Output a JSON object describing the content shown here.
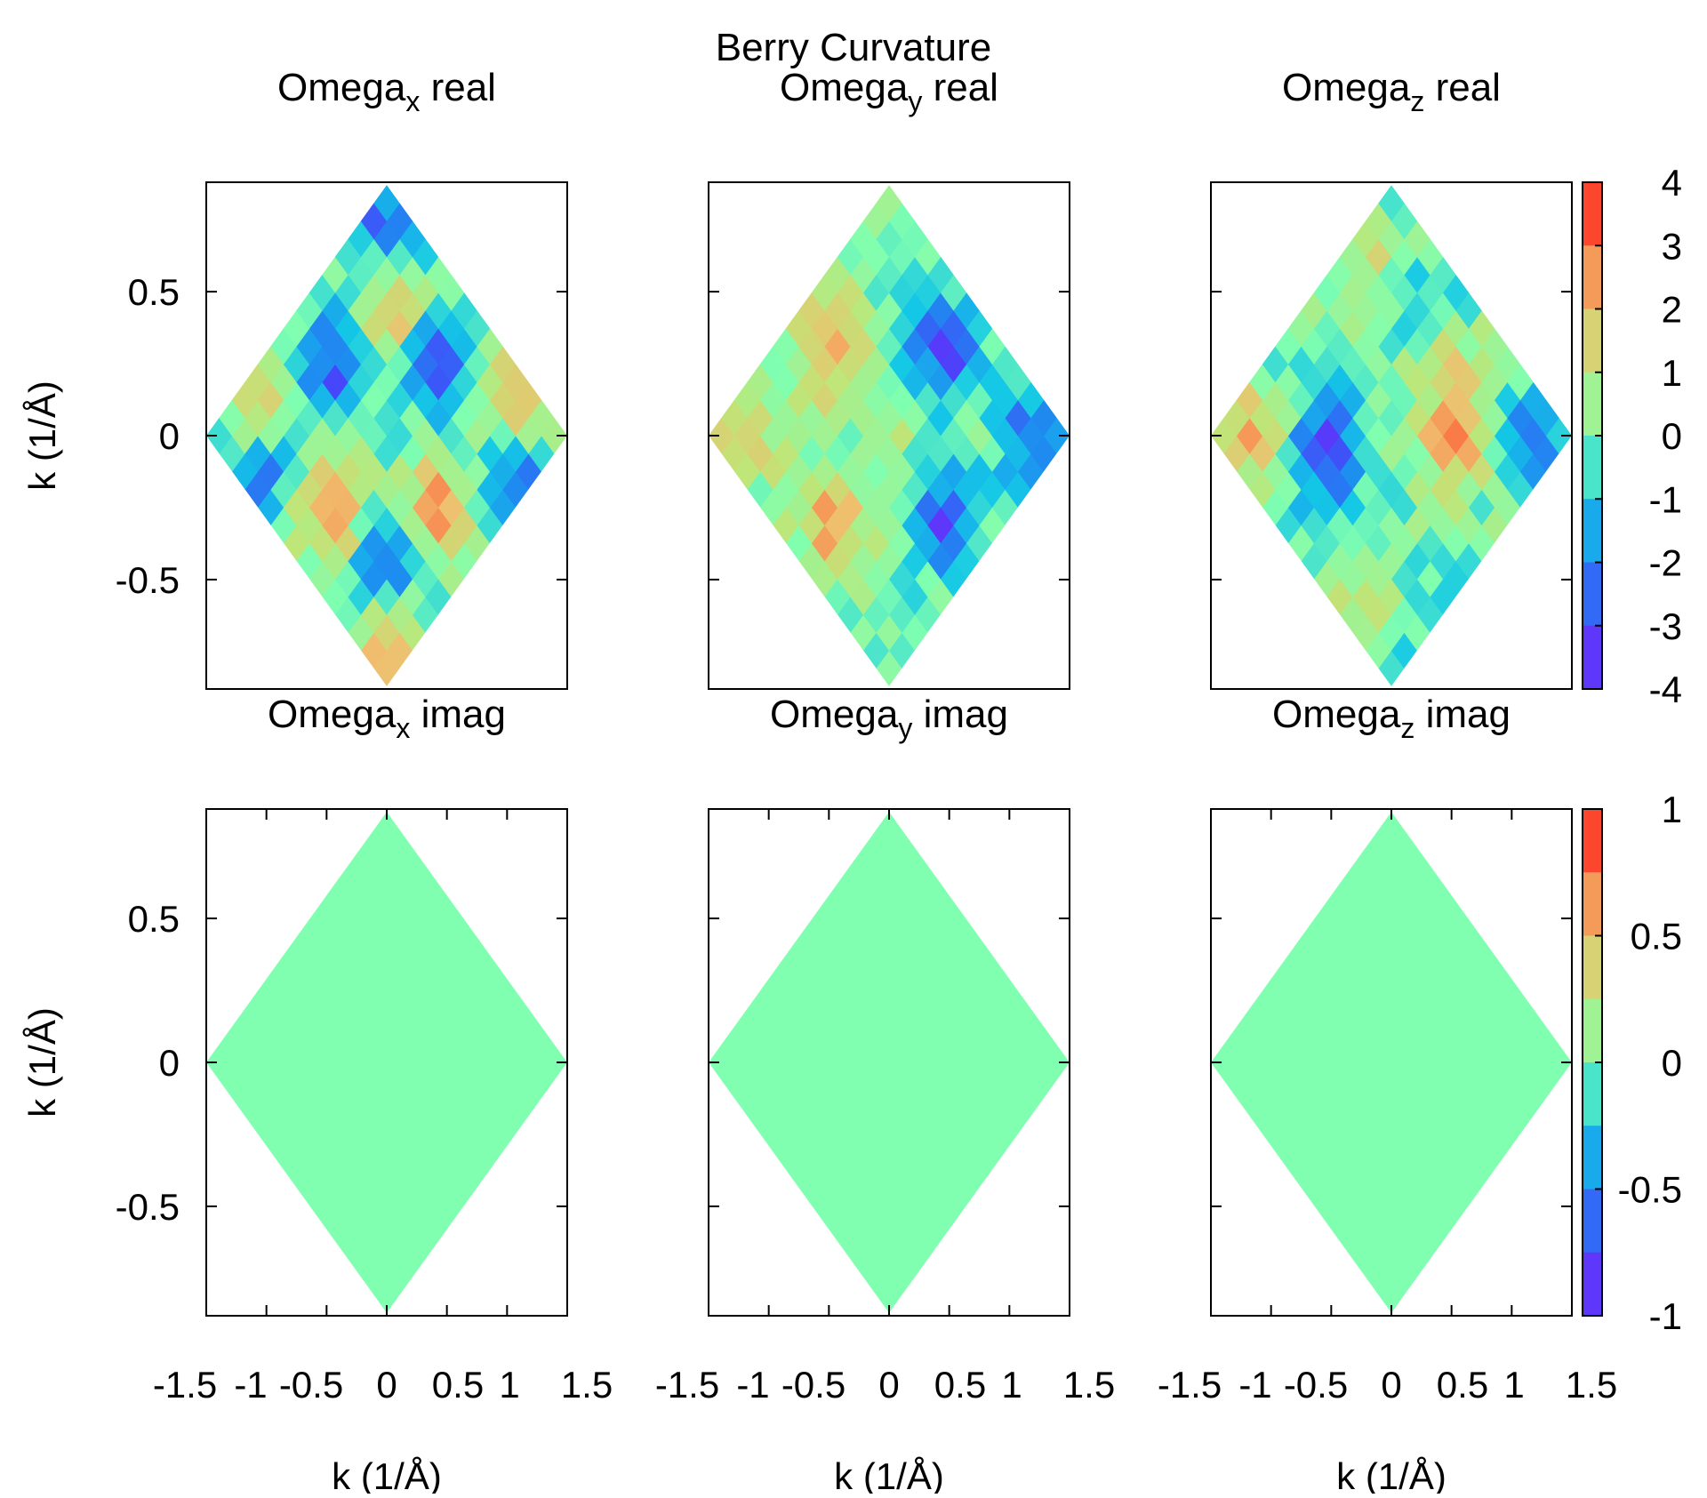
{
  "figure_title": "Berry Curvature",
  "colors": {
    "zero_fill": "#80ffb0",
    "frame": "#000000",
    "background": "#ffffff"
  },
  "chart_data": [
    {
      "type": "heatmap",
      "title": "Omega",
      "title_subscript": "x",
      "title_suffix": " real",
      "xlabel": "k (1/Å)",
      "ylabel": "k (1/Å)",
      "xlim": [
        -1.5,
        1.5
      ],
      "ylim": [
        -0.88,
        0.88
      ],
      "yticks": [
        "0.5",
        "0",
        "-0.5"
      ],
      "xticks": [],
      "zlim": [
        -4,
        4
      ],
      "domain": "hexagonal Brillouin zone (rhombus), vertices at k=(±1.5,0) and (0,±0.87)",
      "features": [
        {
          "kx": 0.0,
          "ky": 0.74,
          "value": -2.5
        },
        {
          "kx": 0.0,
          "ky": 0.42,
          "value": 2.2
        },
        {
          "kx": -0.45,
          "ky": 0.26,
          "value": -3.0
        },
        {
          "kx": 0.45,
          "ky": 0.26,
          "value": -3.0
        },
        {
          "kx": -1.05,
          "ky": 0.14,
          "value": 2.0
        },
        {
          "kx": 1.05,
          "ky": 0.14,
          "value": 2.0
        },
        {
          "kx": -1.05,
          "ky": -0.14,
          "value": -2.2
        },
        {
          "kx": 1.05,
          "ky": -0.14,
          "value": -2.2
        },
        {
          "kx": -0.45,
          "ky": -0.26,
          "value": 2.8
        },
        {
          "kx": 0.45,
          "ky": -0.26,
          "value": 2.8
        },
        {
          "kx": 0.0,
          "ky": -0.42,
          "value": -2.8
        },
        {
          "kx": 0.0,
          "ky": -0.74,
          "value": 2.3
        }
      ]
    },
    {
      "type": "heatmap",
      "title": "Omega",
      "title_subscript": "y",
      "title_suffix": " real",
      "xlabel": "k (1/Å)",
      "ylabel": "k (1/Å)",
      "xlim": [
        -1.5,
        1.5
      ],
      "ylim": [
        -0.88,
        0.88
      ],
      "yticks": [],
      "xticks": [],
      "zlim": [
        -4,
        4
      ],
      "features": [
        {
          "kx": -0.45,
          "ky": 0.3,
          "value": 2.5
        },
        {
          "kx": 0.45,
          "ky": 0.3,
          "value": -3.0
        },
        {
          "kx": -1.2,
          "ky": 0.0,
          "value": 2.0
        },
        {
          "kx": 1.2,
          "ky": 0.0,
          "value": -2.6
        },
        {
          "kx": -0.45,
          "ky": -0.3,
          "value": 2.6
        },
        {
          "kx": 0.45,
          "ky": -0.3,
          "value": -3.0
        },
        {
          "kx": 0.05,
          "ky": 0.05,
          "value": 0.6
        }
      ]
    },
    {
      "type": "heatmap",
      "title": "Omega",
      "title_subscript": "z",
      "title_suffix": " real",
      "xlabel": "k (1/Å)",
      "ylabel": "k (1/Å)",
      "xlim": [
        -1.5,
        1.5
      ],
      "ylim": [
        -0.88,
        0.88
      ],
      "yticks": [],
      "xticks": [],
      "zlim": [
        -4,
        4
      ],
      "colorbar_ticks": [
        "4",
        "3",
        "2",
        "1",
        "0",
        "-1",
        "-2",
        "-3",
        "-4"
      ],
      "features": [
        {
          "kx": -1.2,
          "ky": 0.0,
          "value": 2.2
        },
        {
          "kx": -0.55,
          "ky": 0.0,
          "value": -2.4
        },
        {
          "kx": 0.55,
          "ky": 0.0,
          "value": 2.4
        },
        {
          "kx": 1.2,
          "ky": 0.0,
          "value": -2.2
        },
        {
          "kx": -0.2,
          "ky": 0.58,
          "value": 1.2
        },
        {
          "kx": 0.2,
          "ky": -0.58,
          "value": -1.0
        },
        {
          "kx": 0.25,
          "ky": 0.5,
          "value": -1.0
        },
        {
          "kx": -0.2,
          "ky": -0.55,
          "value": 1.4
        },
        {
          "kx": 0.5,
          "ky": 0.2,
          "value": 1.2
        },
        {
          "kx": -0.5,
          "ky": -0.2,
          "value": -1.2
        }
      ]
    },
    {
      "type": "heatmap",
      "title": "Omega",
      "title_subscript": "x",
      "title_suffix": " imag",
      "xlabel": "k (1/Å)",
      "ylabel": "k (1/Å)",
      "xlim": [
        -1.5,
        1.5
      ],
      "ylim": [
        -0.88,
        0.88
      ],
      "yticks": [
        "0.5",
        "0",
        "-0.5"
      ],
      "xticks": [
        "-1.5",
        "-1",
        "-0.5",
        "0",
        "0.5",
        "1",
        "1.5"
      ],
      "zlim": [
        -1,
        1
      ],
      "uniform_value": 0
    },
    {
      "type": "heatmap",
      "title": "Omega",
      "title_subscript": "y",
      "title_suffix": " imag",
      "xlabel": "k (1/Å)",
      "ylabel": "k (1/Å)",
      "xlim": [
        -1.5,
        1.5
      ],
      "ylim": [
        -0.88,
        0.88
      ],
      "yticks": [],
      "xticks": [
        "-1.5",
        "-1",
        "-0.5",
        "0",
        "0.5",
        "1",
        "1.5"
      ],
      "zlim": [
        -1,
        1
      ],
      "uniform_value": 0
    },
    {
      "type": "heatmap",
      "title": "Omega",
      "title_subscript": "z",
      "title_suffix": " imag",
      "xlabel": "k (1/Å)",
      "ylabel": "k (1/Å)",
      "xlim": [
        -1.5,
        1.5
      ],
      "ylim": [
        -0.88,
        0.88
      ],
      "yticks": [],
      "xticks": [
        "-1.5",
        "-1",
        "-0.5",
        "0",
        "0.5",
        "1",
        "1.5"
      ],
      "zlim": [
        -1,
        1
      ],
      "colorbar_ticks": [
        "1",
        "0.5",
        "0",
        "-0.5",
        "-1"
      ],
      "uniform_value": 0
    }
  ]
}
